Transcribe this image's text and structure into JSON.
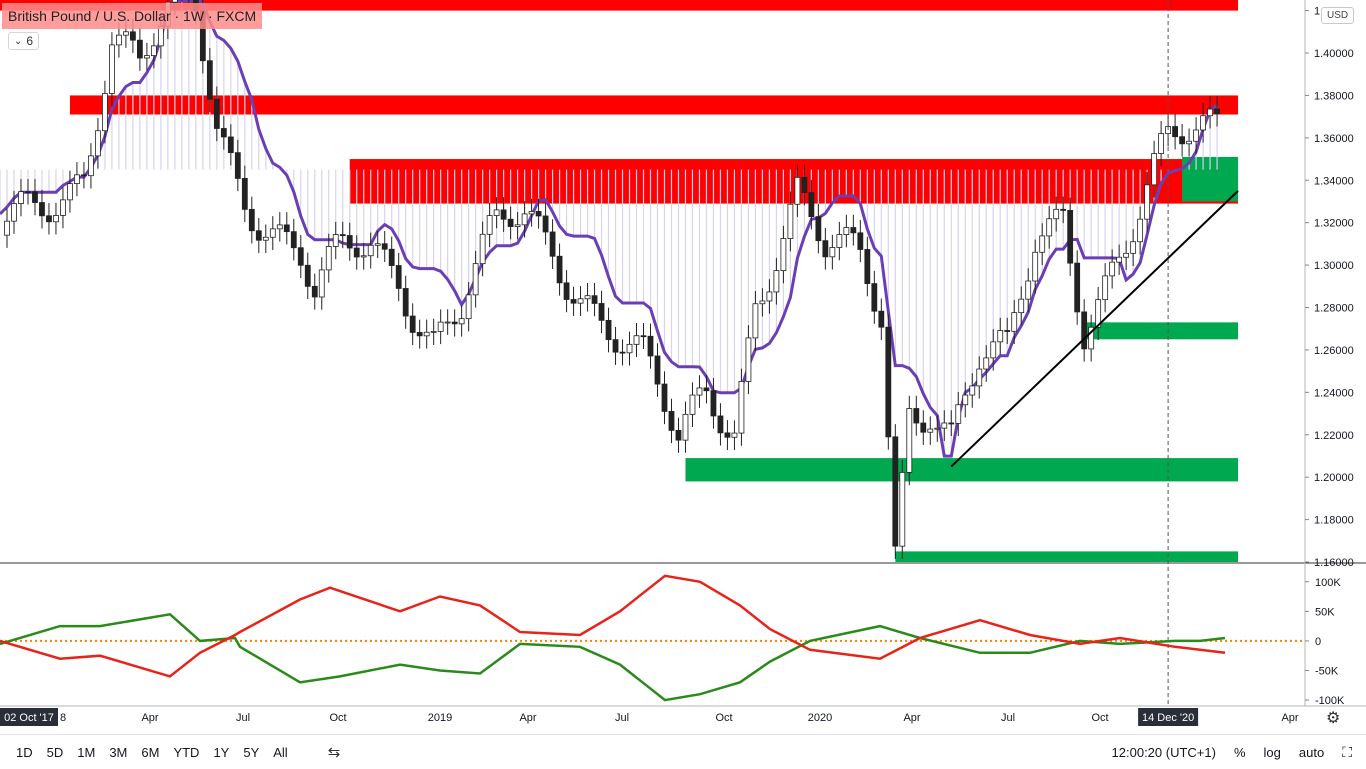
{
  "header": {
    "title": "British Pound / U.S. Dollar · 1W · FXCM",
    "indicator_value": "6",
    "currency_badge": "USD"
  },
  "time_axis": {
    "labels": [
      "8",
      "Apr",
      "Jul",
      "Oct",
      "2019",
      "Apr",
      "Jul",
      "Oct",
      "2020",
      "Apr",
      "Jul",
      "Oct",
      "Apr"
    ],
    "start_label": "02 Oct '17",
    "crosshair_label": "14 Dec '20"
  },
  "bottom_toolbar": {
    "ranges": [
      "1D",
      "5D",
      "1M",
      "3M",
      "6M",
      "YTD",
      "1Y",
      "5Y",
      "All"
    ],
    "clock": "12:00:20 (UTC+1)",
    "percent": "%",
    "log": "log",
    "auto": "auto"
  },
  "colors": {
    "resistance_zone": "#ff0000",
    "support_zone": "#00a94f",
    "ichimoku_line": "#6a3fb5",
    "oscillator_up": "#2a8a1a",
    "oscillator_down": "#e8241a",
    "zero_line": "#ff7f00"
  },
  "chart_data": [
    {
      "type": "candlestick",
      "title": "British Pound / U.S. Dollar · 1W · FXCM",
      "ylim": [
        1.16,
        1.425
      ],
      "y_ticks": [
        "1.42000",
        "1.40000",
        "1.38000",
        "1.36000",
        "1.34000",
        "1.32000",
        "1.30000",
        "1.28000",
        "1.26000",
        "1.24000",
        "1.22000",
        "1.20000",
        "1.18000",
        "1.16000"
      ],
      "x_range": [
        "2017-10-02",
        "2021-04-30"
      ],
      "series_close_points": [
        [
          "2017-10-02",
          1.31
        ],
        [
          "2017-11-13",
          1.33
        ],
        [
          "2017-12-25",
          1.35
        ],
        [
          "2018-01-22",
          1.41
        ],
        [
          "2018-02-19",
          1.39
        ],
        [
          "2018-03-19",
          1.41
        ],
        [
          "2018-04-16",
          1.42
        ],
        [
          "2018-05-07",
          1.37
        ],
        [
          "2018-06-04",
          1.34
        ],
        [
          "2018-07-02",
          1.32
        ],
        [
          "2018-07-30",
          1.3
        ],
        [
          "2018-08-13",
          1.28
        ],
        [
          "2018-09-10",
          1.3
        ],
        [
          "2018-10-08",
          1.31
        ],
        [
          "2018-11-05",
          1.3
        ],
        [
          "2018-12-10",
          1.27
        ],
        [
          "2019-01-07",
          1.28
        ],
        [
          "2019-02-11",
          1.31
        ],
        [
          "2019-03-11",
          1.32
        ],
        [
          "2019-04-08",
          1.31
        ],
        [
          "2019-05-13",
          1.29
        ],
        [
          "2019-06-10",
          1.27
        ],
        [
          "2019-07-08",
          1.25
        ],
        [
          "2019-08-12",
          1.21
        ],
        [
          "2019-09-09",
          1.24
        ],
        [
          "2019-10-07",
          1.23
        ],
        [
          "2019-10-28",
          1.29
        ],
        [
          "2019-12-09",
          1.33
        ],
        [
          "2020-01-06",
          1.3
        ],
        [
          "2020-02-10",
          1.3
        ],
        [
          "2020-03-02",
          1.28
        ],
        [
          "2020-03-16",
          1.17
        ],
        [
          "2020-03-30",
          1.24
        ],
        [
          "2020-04-20",
          1.24
        ],
        [
          "2020-05-11",
          1.22
        ],
        [
          "2020-06-08",
          1.25
        ],
        [
          "2020-07-06",
          1.25
        ],
        [
          "2020-08-03",
          1.31
        ],
        [
          "2020-08-31",
          1.33
        ],
        [
          "2020-09-21",
          1.28
        ],
        [
          "2020-10-19",
          1.3
        ],
        [
          "2020-11-16",
          1.32
        ],
        [
          "2020-12-14",
          1.35
        ],
        [
          "2021-01-11",
          1.36
        ],
        [
          "2021-02-01",
          1.37
        ]
      ],
      "zones": [
        {
          "kind": "resistance",
          "from": "2017-10-02",
          "to": "2021-02-22",
          "low": 1.42,
          "high": 1.425
        },
        {
          "kind": "resistance",
          "from": "2017-12-11",
          "to": "2021-02-22",
          "low": 1.371,
          "high": 1.38
        },
        {
          "kind": "resistance",
          "from": "2018-09-17",
          "to": "2021-02-22",
          "low": 1.329,
          "high": 1.35
        },
        {
          "kind": "support",
          "from": "2020-12-28",
          "to": "2021-02-22",
          "low": 1.33,
          "high": 1.351
        },
        {
          "kind": "support",
          "from": "2020-09-21",
          "to": "2021-02-22",
          "low": 1.265,
          "high": 1.273
        },
        {
          "kind": "support",
          "from": "2019-08-19",
          "to": "2021-02-22",
          "low": 1.198,
          "high": 1.209
        },
        {
          "kind": "support",
          "from": "2020-03-16",
          "to": "2021-02-22",
          "low": 1.16,
          "high": 1.165
        }
      ],
      "trendline": [
        [
          "2020-05-11",
          1.205
        ],
        [
          "2021-02-22",
          1.335
        ]
      ]
    },
    {
      "type": "line",
      "ylim": [
        -110000,
        130000
      ],
      "y_ticks": [
        "100K",
        "50K",
        "0",
        "-50K",
        "-100K"
      ],
      "series": [
        {
          "color": "green",
          "points": [
            [
              0,
              -5000
            ],
            [
              60,
              25000
            ],
            [
              100,
              25000
            ],
            [
              170,
              45000
            ],
            [
              200,
              0
            ],
            [
              235,
              5000
            ],
            [
              240,
              -10000
            ],
            [
              300,
              -70000
            ],
            [
              340,
              -60000
            ],
            [
              400,
              -40000
            ],
            [
              440,
              -50000
            ],
            [
              480,
              -55000
            ],
            [
              520,
              -5000
            ],
            [
              580,
              -10000
            ],
            [
              620,
              -40000
            ],
            [
              665,
              -100000
            ],
            [
              700,
              -90000
            ],
            [
              740,
              -70000
            ],
            [
              770,
              -35000
            ],
            [
              810,
              0
            ],
            [
              880,
              25000
            ],
            [
              920,
              5000
            ],
            [
              980,
              -20000
            ],
            [
              1030,
              -20000
            ],
            [
              1080,
              0
            ],
            [
              1120,
              -5000
            ],
            [
              1175,
              0
            ],
            [
              1200,
              0
            ],
            [
              1225,
              5000
            ]
          ]
        },
        {
          "color": "red",
          "points": [
            [
              0,
              0
            ],
            [
              60,
              -30000
            ],
            [
              100,
              -25000
            ],
            [
              170,
              -60000
            ],
            [
              200,
              -20000
            ],
            [
              235,
              10000
            ],
            [
              240,
              15000
            ],
            [
              300,
              70000
            ],
            [
              330,
              90000
            ],
            [
              400,
              50000
            ],
            [
              440,
              75000
            ],
            [
              480,
              60000
            ],
            [
              520,
              15000
            ],
            [
              580,
              10000
            ],
            [
              620,
              50000
            ],
            [
              665,
              110000
            ],
            [
              700,
              100000
            ],
            [
              740,
              60000
            ],
            [
              770,
              20000
            ],
            [
              810,
              -15000
            ],
            [
              880,
              -30000
            ],
            [
              920,
              5000
            ],
            [
              980,
              35000
            ],
            [
              1030,
              10000
            ],
            [
              1080,
              -5000
            ],
            [
              1120,
              5000
            ],
            [
              1175,
              -10000
            ],
            [
              1200,
              -15000
            ],
            [
              1225,
              -20000
            ]
          ]
        }
      ]
    }
  ]
}
